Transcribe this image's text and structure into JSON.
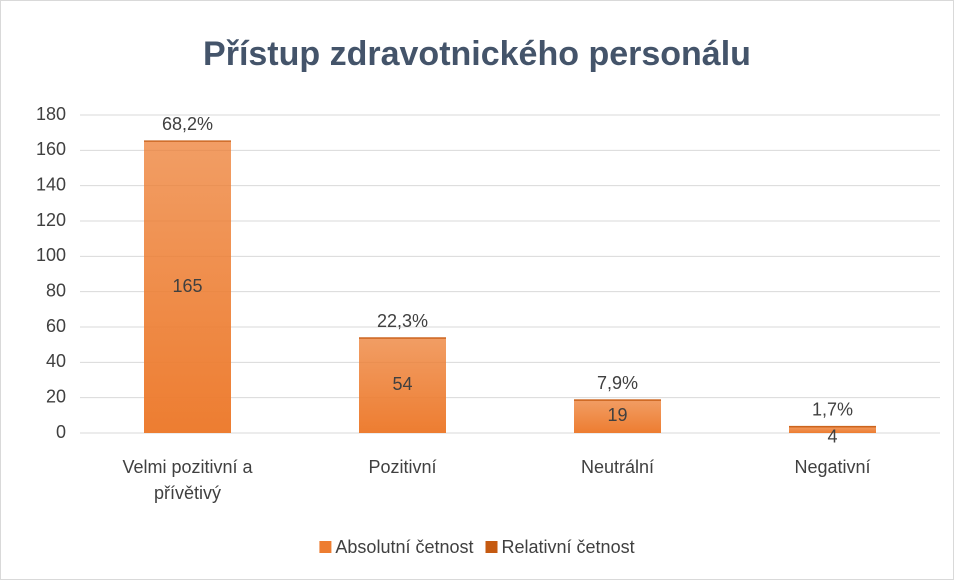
{
  "chart_data": {
    "type": "bar",
    "stacked": true,
    "title": "Přístup zdravotnického personálu",
    "categories": [
      "Velmi pozitivní a přívětivý",
      "Pozitivní",
      "Neutrální",
      "Negativní"
    ],
    "series": [
      {
        "name": "Absolutní četnost",
        "color": "#ed7d31",
        "values": [
          165,
          54,
          19,
          4
        ]
      },
      {
        "name": "Relativní četnost",
        "color": "#c55a11",
        "values": [
          0.682,
          0.223,
          0.079,
          0.017
        ],
        "value_labels": [
          "68,2%",
          "22,3%",
          "7,9%",
          "1,7%"
        ]
      }
    ],
    "ylim": [
      0,
      180
    ],
    "yticks": [
      0,
      20,
      40,
      60,
      80,
      100,
      120,
      140,
      160,
      180
    ],
    "grid": true,
    "legend": "bottom"
  }
}
